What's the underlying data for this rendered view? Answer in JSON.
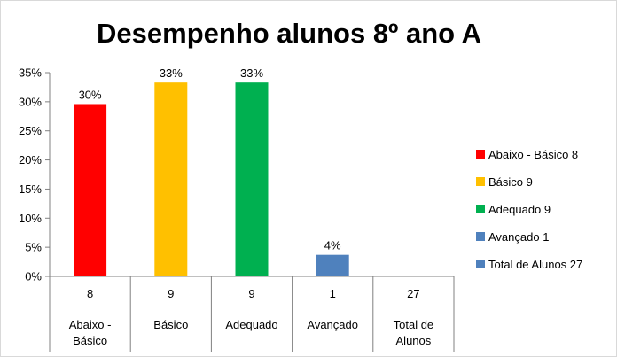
{
  "chart_data": {
    "type": "bar",
    "title": "Desempenho alunos 8º ano A",
    "ylim": [
      0,
      35
    ],
    "y_ticks": [
      "0%",
      "5%",
      "10%",
      "15%",
      "20%",
      "25%",
      "30%",
      "35%"
    ],
    "grid": false,
    "legend_position": "right",
    "categories": [
      {
        "label_lines": [
          "Abaixo -",
          "Básico"
        ],
        "count": "8",
        "value": 29.6,
        "value_label": "30%",
        "color": "#ff0000"
      },
      {
        "label_lines": [
          "Básico"
        ],
        "count": "9",
        "value": 33.3,
        "value_label": "33%",
        "color": "#ffc000"
      },
      {
        "label_lines": [
          "Adequado"
        ],
        "count": "9",
        "value": 33.3,
        "value_label": "33%",
        "color": "#00b050"
      },
      {
        "label_lines": [
          "Avançado"
        ],
        "count": "1",
        "value": 3.7,
        "value_label": "4%",
        "color": "#4f81bd"
      },
      {
        "label_lines": [
          "Total de",
          "Alunos"
        ],
        "count": "27",
        "value": null,
        "value_label": "",
        "color": "#4f81bd"
      }
    ],
    "legend": [
      {
        "label": "Abaixo - Básico 8",
        "color": "#ff0000"
      },
      {
        "label": "Básico 9",
        "color": "#ffc000"
      },
      {
        "label": "Adequado 9",
        "color": "#00b050"
      },
      {
        "label": "Avançado 1",
        "color": "#4f81bd"
      },
      {
        "label": "Total de Alunos 27",
        "color": "#4f81bd"
      }
    ]
  }
}
